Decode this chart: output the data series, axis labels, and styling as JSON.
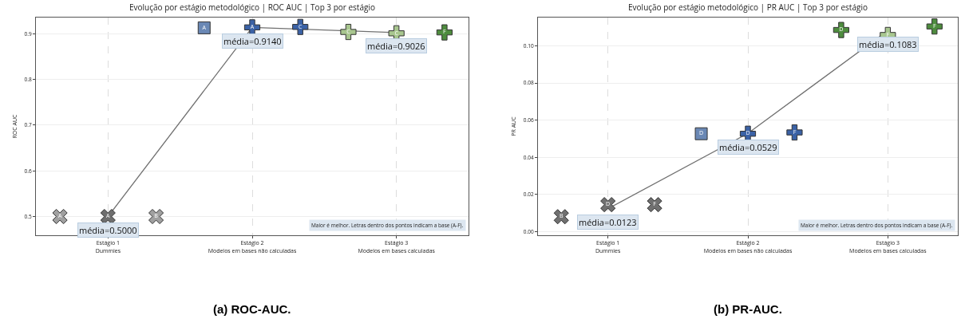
{
  "chart_data": [
    {
      "type": "scatter",
      "title": "Evolução por estágio metodológico | ROC AUC | Top 3 por estágio",
      "ylabel": "ROC AUC",
      "categories": [
        null,
        "Estágio 1\nDummies",
        null,
        null,
        "Estágio 2\nModelos em bases não calculadas",
        null,
        null,
        "Estágio 3\nModelos em bases calculadas",
        null
      ],
      "ylim": [
        0.459,
        0.9355
      ],
      "yticks": [
        0.5,
        0.6,
        0.7,
        0.8,
        0.9
      ],
      "grid": true,
      "series": [
        {
          "type": "line",
          "values": [
            null,
            0.5,
            null,
            null,
            0.914,
            null,
            null,
            0.9026,
            null
          ],
          "color": "#707070",
          "marker": "none",
          "line_style": "solid"
        },
        {
          "values": [
            0.5,
            0.5,
            0.5,
            null,
            null,
            null,
            null,
            null,
            null
          ],
          "colors": [
            "#a0a0a0",
            "#6e6e6e",
            "#a0a0a0",
            null,
            null,
            null,
            null,
            null,
            null
          ],
          "marker": "x",
          "value_labels": [
            "A",
            "A",
            "B",
            null,
            null,
            null,
            null,
            null,
            null
          ]
        },
        {
          "values": [
            null,
            null,
            null,
            0.913,
            null,
            null,
            null,
            null,
            null
          ],
          "colors": [
            null,
            null,
            null,
            "#6a88b5",
            null,
            null,
            null,
            null,
            null
          ],
          "marker": "square",
          "value_labels": [
            null,
            null,
            null,
            "A",
            null,
            null,
            null,
            null,
            null
          ]
        },
        {
          "values": [
            null,
            null,
            null,
            null,
            0.914,
            0.915,
            null,
            null,
            null
          ],
          "colors": [
            null,
            null,
            null,
            null,
            "#3b62a6",
            "#3b62a6",
            null,
            null,
            null
          ],
          "marker": "cross",
          "value_labels": [
            null,
            null,
            null,
            null,
            "A",
            "C",
            null,
            null,
            null
          ]
        },
        {
          "values": [
            null,
            null,
            null,
            null,
            null,
            null,
            0.904,
            0.901,
            0.903
          ],
          "colors": [
            null,
            null,
            null,
            null,
            null,
            null,
            "#a8c68f",
            "#a8c68f",
            "#4e8c3e"
          ],
          "marker": "cross",
          "value_labels": [
            null,
            null,
            null,
            null,
            null,
            null,
            "C",
            "C",
            "F"
          ]
        }
      ],
      "annotations": [
        {
          "text": "média=0.5000",
          "x": "Estágio 1\nDummies",
          "y": 0.5
        },
        {
          "text": "média=0.9140",
          "x": "Estágio 2\nModelos em bases não calculadas",
          "y": 0.914
        },
        {
          "text": "média=0.9026",
          "x": "Estágio 3\nModelos em bases calculadas",
          "y": 0.9026
        },
        "Maior é melhor. Letras dentro dos pontos indicam a base (A-F).",
        "(a) ROC-AUC."
      ]
    },
    {
      "type": "scatter",
      "title": "Evolução por estágio metodológico | PR AUC | Top 3 por estágio",
      "ylabel": "PR AUC",
      "categories": [
        null,
        "Estágio 1\nDummies",
        null,
        null,
        "Estágio 2\nModelos em bases não calculadas",
        null,
        null,
        "Estágio 3\nModelos em bases calculadas",
        null
      ],
      "ylim": [
        -0.002,
        0.1153
      ],
      "yticks": [
        {
          "value": 0,
          "label": "0.00"
        },
        {
          "value": 0.02,
          "label": "0.02"
        },
        {
          "value": 0.04,
          "label": "0.04"
        },
        {
          "value": 0.06,
          "label": "0.06"
        },
        {
          "value": 0.08,
          "label": "0.08"
        },
        {
          "value": 0.1,
          "label": "0.10"
        }
      ],
      "grid": true,
      "series": [
        {
          "type": "line",
          "values": [
            null,
            0.0123,
            null,
            null,
            0.0529,
            null,
            null,
            0.1083,
            null
          ],
          "color": "#707070",
          "marker": "none",
          "line_style": "solid"
        },
        {
          "values": [
            0.008,
            0.0145,
            0.0145,
            null,
            null,
            null,
            null,
            null,
            null
          ],
          "colors": [
            "#707070",
            "#707070",
            "#707070",
            null,
            null,
            null,
            null,
            null,
            null
          ],
          "marker": "x",
          "value_labels": [
            "B",
            "D",
            "F",
            null,
            null,
            null,
            null,
            null,
            null
          ]
        },
        {
          "values": [
            null,
            null,
            null,
            0.0527,
            null,
            null,
            null,
            null,
            null
          ],
          "colors": [
            null,
            null,
            null,
            "#6a88b5",
            null,
            null,
            null,
            null,
            null
          ],
          "marker": "square",
          "value_labels": [
            null,
            null,
            null,
            "D",
            null,
            null,
            null,
            null,
            null
          ]
        },
        {
          "values": [
            null,
            null,
            null,
            null,
            0.0527,
            0.0534,
            null,
            null,
            null
          ],
          "colors": [
            null,
            null,
            null,
            null,
            "#3b62a6",
            "#3b62a6",
            null,
            null,
            null
          ],
          "marker": "cross",
          "value_labels": [
            null,
            null,
            null,
            null,
            "D",
            "F",
            null,
            null,
            null
          ]
        },
        {
          "values": [
            null,
            null,
            null,
            null,
            null,
            null,
            0.1086,
            0.1059,
            0.1105
          ],
          "colors": [
            null,
            null,
            null,
            null,
            null,
            null,
            "#4e8c3e",
            "#a8c68f",
            "#4e8c3e"
          ],
          "marker": "cross",
          "value_labels": [
            null,
            null,
            null,
            null,
            null,
            null,
            "D",
            "F",
            "F"
          ]
        }
      ],
      "annotations": [
        {
          "text": "média=0.0123",
          "x": "Estágio 1\nDummies",
          "y": 0.0123
        },
        {
          "text": "média=0.0529",
          "x": "Estágio 2\nModelos em bases não calculadas",
          "y": 0.0529
        },
        {
          "text": "média=0.1083",
          "x": "Estágio 3\nModelos em bases calculadas",
          "y": 0.1083
        },
        "Maior é melhor. Letras dentro dos pontos indicam a base (A-F).",
        "(b) PR-AUC."
      ]
    }
  ]
}
